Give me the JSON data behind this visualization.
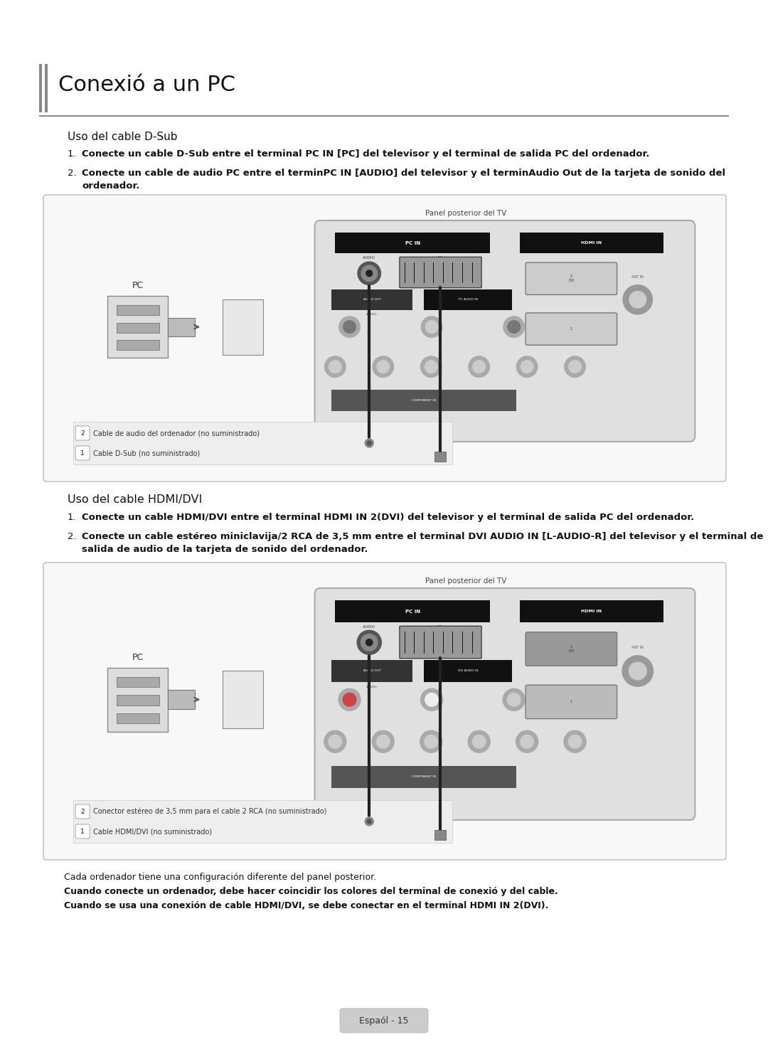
{
  "bg_color": "#ffffff",
  "title": "Conexió a un PC",
  "section1_title": "Uso del cable D-Sub",
  "section1_item1": "Conecte un cable D-Sub entre el terminal PC IN [PC] del televisor y el terminal de salida PC del ordenador.",
  "section1_item2_line1": "Conecte un cable de audio PC entre el termin​PC IN [AUDIO] del televisor y el termin​Audio Out​ de la tarjeta de sonido del",
  "section1_item2_line2": "ordenador.",
  "diagram1_label": "Panel posterior del TV",
  "diagram1_pc_label": "PC",
  "diagram1_cable1": "Cable D-Sub (no suministrado)",
  "diagram1_cable2": "Cable de audio del ordenador (no suministrado)",
  "section2_title": "Uso del cable HDMI/DVI",
  "section2_item1": "Conecte un cable HDMI/DVI entre el terminal HDMI IN 2(DVI) del televisor y el terminal de salida PC del ordenador.",
  "section2_item2_line1": "Conecte un cable estéreo miniclavija/2 RCA​ de 3,5 mm entre el terminal DVI AUDIO IN [L-AUDIO-R] del televisor y el terminal de",
  "section2_item2_line2": "salida de audio de la tarjeta de sonido del ordenador.",
  "diagram2_label": "Panel posterior del TV",
  "diagram2_pc_label": "PC",
  "diagram2_cable1": "Cable HDMI/DVI (no suministrado)",
  "diagram2_cable2": "Conector estéreo de 3,5 mm para el cable 2 RCA (no suministrado)",
  "footer1": "Cada ordenador tiene una configuración diferente del panel posterior.",
  "footer2": "Cuando conecte un ordenador, debe hacer coincidir los colores del terminal de conexió y del cable.",
  "footer3": "Cuando se usa una conexión de cable HDMI/DVI, se debe conectar en el terminal HDMI IN 2(DVI).",
  "page_label": "Espaól - 15"
}
